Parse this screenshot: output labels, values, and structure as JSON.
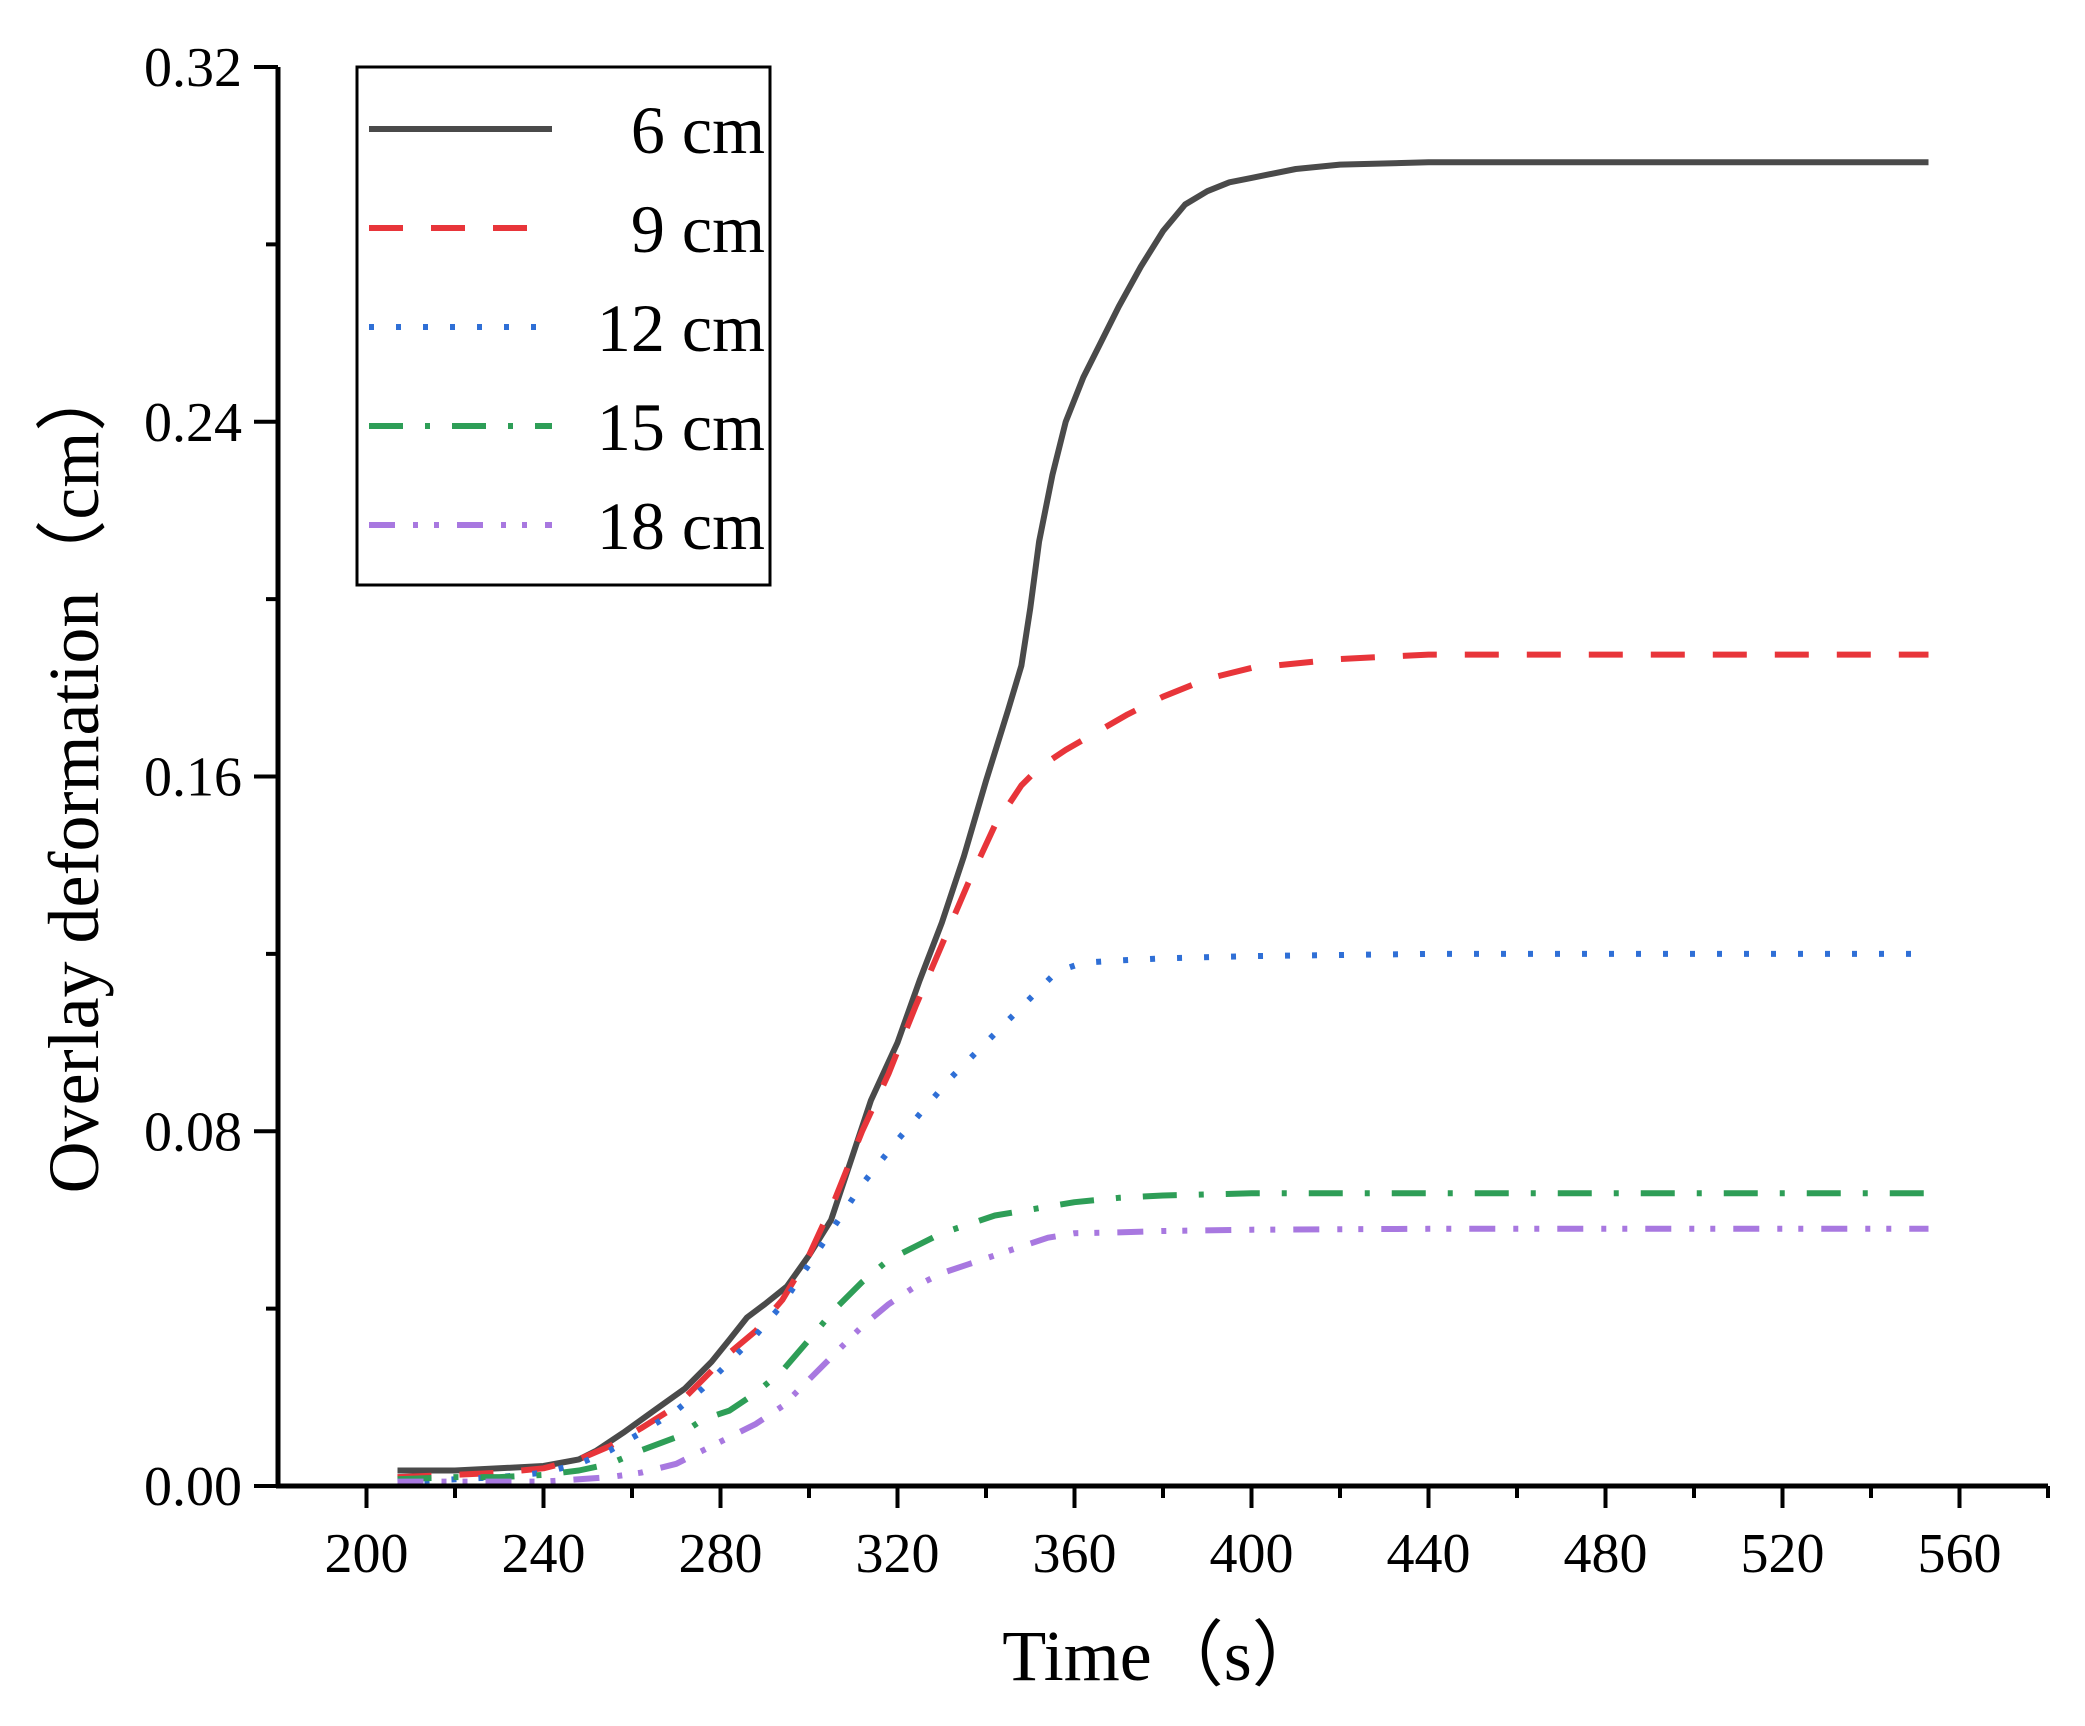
{
  "chart_data": {
    "type": "line",
    "title": "",
    "xlabel": "Time（s）",
    "ylabel": "Overlay deformation（cm）",
    "xlim": [
      180,
      580
    ],
    "ylim": [
      0,
      0.32
    ],
    "xticks": [
      200,
      240,
      280,
      320,
      360,
      400,
      440,
      480,
      520,
      560
    ],
    "xtick_labels": [
      "200",
      "240",
      "280",
      "320",
      "360",
      "400",
      "440",
      "480",
      "520",
      "560"
    ],
    "yticks": [
      0,
      0.08,
      0.16,
      0.24,
      0.32
    ],
    "ytick_labels": [
      "0.00",
      "0.08",
      "0.16",
      "0.24",
      "0.32"
    ],
    "grid": false,
    "legend_position": "top-left",
    "series": [
      {
        "name": "6 cm",
        "color": "#4a4a4a",
        "dash": "solid",
        "x": [
          207,
          220,
          230,
          240,
          248,
          252,
          258,
          265,
          272,
          278,
          282,
          286,
          290,
          295,
          300,
          305,
          310,
          314,
          320,
          325,
          330,
          335,
          340,
          345,
          348,
          350,
          352,
          355,
          358,
          362,
          366,
          370,
          375,
          380,
          385,
          390,
          395,
          400,
          410,
          420,
          440,
          480,
          520,
          553
        ],
        "values": [
          0.0035,
          0.0035,
          0.004,
          0.0045,
          0.006,
          0.008,
          0.012,
          0.017,
          0.022,
          0.028,
          0.033,
          0.038,
          0.041,
          0.045,
          0.052,
          0.06,
          0.075,
          0.087,
          0.1,
          0.114,
          0.127,
          0.142,
          0.159,
          0.175,
          0.185,
          0.198,
          0.213,
          0.228,
          0.24,
          0.25,
          0.258,
          0.266,
          0.275,
          0.283,
          0.289,
          0.292,
          0.294,
          0.295,
          0.297,
          0.298,
          0.2985,
          0.2985,
          0.2985,
          0.2985
        ]
      },
      {
        "name": "9 cm",
        "color": "#e8353a",
        "dash": "long",
        "x": [
          207,
          220,
          230,
          240,
          248,
          255,
          262,
          270,
          276,
          282,
          288,
          294,
          300,
          306,
          312,
          318,
          324,
          330,
          336,
          342,
          348,
          352,
          358,
          365,
          372,
          380,
          390,
          400,
          420,
          440,
          480,
          520,
          553
        ],
        "values": [
          0.002,
          0.0025,
          0.003,
          0.004,
          0.006,
          0.009,
          0.013,
          0.018,
          0.024,
          0.03,
          0.035,
          0.042,
          0.052,
          0.065,
          0.08,
          0.093,
          0.108,
          0.122,
          0.136,
          0.149,
          0.158,
          0.162,
          0.166,
          0.17,
          0.174,
          0.178,
          0.182,
          0.1845,
          0.1865,
          0.1875,
          0.1875,
          0.1875,
          0.1875
        ]
      },
      {
        "name": "12 cm",
        "color": "#2f6fd6",
        "dash": "dot",
        "x": [
          207,
          220,
          230,
          240,
          248,
          255,
          262,
          270,
          276,
          282,
          288,
          294,
          300,
          306,
          312,
          320,
          326,
          332,
          338,
          344,
          350,
          356,
          362,
          370,
          380,
          400,
          440,
          480,
          520,
          553
        ],
        "values": [
          0.001,
          0.0015,
          0.002,
          0.003,
          0.005,
          0.008,
          0.012,
          0.017,
          0.022,
          0.028,
          0.034,
          0.041,
          0.05,
          0.059,
          0.068,
          0.078,
          0.085,
          0.092,
          0.098,
          0.104,
          0.11,
          0.116,
          0.118,
          0.1185,
          0.119,
          0.1195,
          0.12,
          0.12,
          0.12,
          0.12
        ]
      },
      {
        "name": "15 cm",
        "color": "#2e9e57",
        "dash": "dashdot",
        "x": [
          207,
          220,
          230,
          240,
          248,
          255,
          262,
          270,
          276,
          282,
          288,
          294,
          300,
          306,
          312,
          318,
          324,
          330,
          336,
          342,
          348,
          354,
          360,
          370,
          380,
          400,
          440,
          480,
          520,
          553
        ],
        "values": [
          0.0015,
          0.002,
          0.002,
          0.0025,
          0.0035,
          0.005,
          0.008,
          0.011,
          0.015,
          0.017,
          0.021,
          0.026,
          0.033,
          0.04,
          0.046,
          0.051,
          0.054,
          0.057,
          0.059,
          0.061,
          0.062,
          0.063,
          0.064,
          0.065,
          0.0655,
          0.066,
          0.066,
          0.066,
          0.066,
          0.066
        ]
      },
      {
        "name": "18 cm",
        "color": "#a878e0",
        "dash": "dashdotdot",
        "x": [
          207,
          220,
          230,
          240,
          248,
          255,
          262,
          270,
          276,
          282,
          288,
          294,
          300,
          306,
          312,
          318,
          324,
          330,
          336,
          342,
          348,
          354,
          360,
          370,
          380,
          400,
          440,
          480,
          520,
          553
        ],
        "values": [
          0.001,
          0.001,
          0.001,
          0.001,
          0.0015,
          0.002,
          0.003,
          0.005,
          0.008,
          0.011,
          0.014,
          0.018,
          0.024,
          0.03,
          0.036,
          0.041,
          0.045,
          0.048,
          0.05,
          0.052,
          0.054,
          0.056,
          0.057,
          0.0572,
          0.0575,
          0.0578,
          0.058,
          0.058,
          0.058,
          0.058
        ]
      }
    ]
  }
}
